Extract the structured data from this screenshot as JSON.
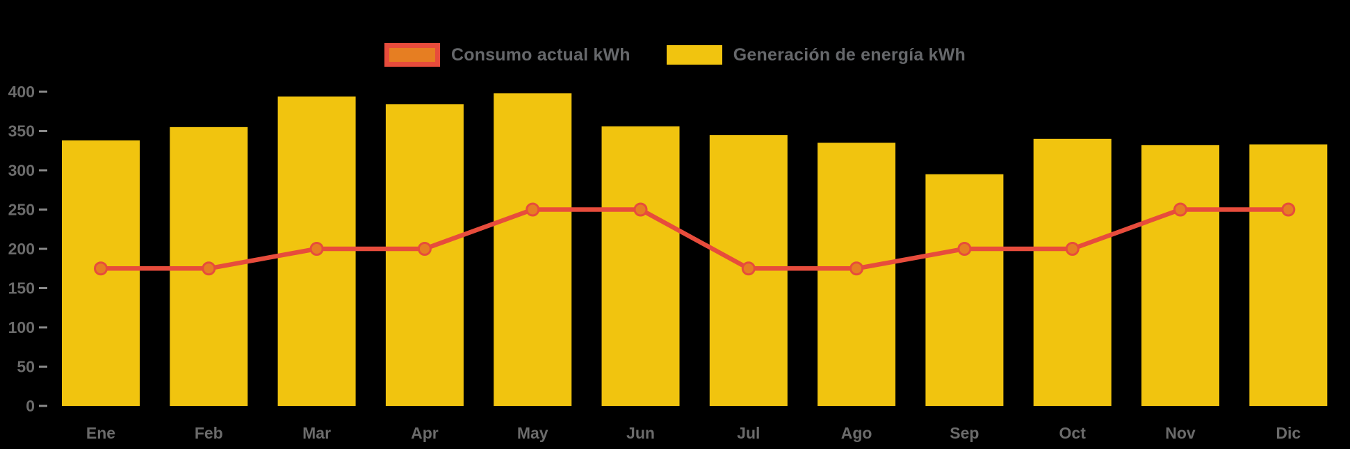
{
  "colors": {
    "background": "#000000",
    "bar_fill": "#f1c40f",
    "line_stroke": "#e74c3c",
    "point_fill": "#e67e22",
    "legend_text": "#66686b",
    "axis_text": "#6b6b6b",
    "tick_mark": "#8a8a8a"
  },
  "legend": {
    "position": "top"
  },
  "chart_data": {
    "type": "bar+line",
    "title": "",
    "xlabel": "",
    "ylabel": "",
    "categories": [
      "Ene",
      "Feb",
      "Mar",
      "Apr",
      "May",
      "Jun",
      "Jul",
      "Ago",
      "Sep",
      "Oct",
      "Nov",
      "Dic"
    ],
    "series": [
      {
        "name": "Consumo actual kWh",
        "type": "line",
        "values": [
          175,
          175,
          200,
          200,
          250,
          250,
          175,
          175,
          200,
          200,
          250,
          250
        ]
      },
      {
        "name": "Generación de energía kWh",
        "type": "bar",
        "values": [
          338,
          355,
          394,
          384,
          398,
          356,
          345,
          335,
          295,
          340,
          332,
          333
        ]
      }
    ],
    "ylim": [
      0,
      400
    ],
    "y_ticks": [
      0,
      50,
      100,
      150,
      200,
      250,
      300,
      350,
      400
    ],
    "grid": false,
    "legend_position": "top"
  }
}
